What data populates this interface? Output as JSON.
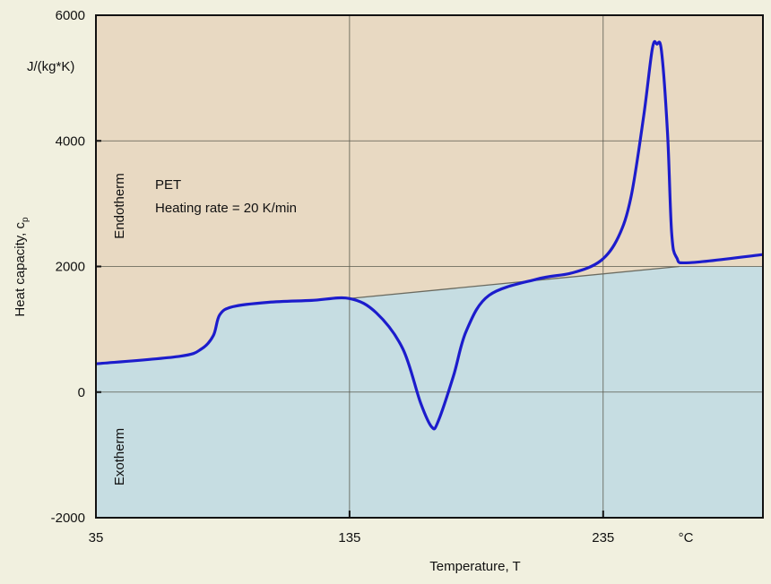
{
  "chart_data": {
    "type": "line",
    "title": "",
    "xlabel": "Temperature, T",
    "ylabel": "Heat capacity, c_p",
    "ylabel_main": "Heat capacity, c",
    "ylabel_sub": "p",
    "yunit": "J/(kg*K)",
    "xunit": "°C",
    "xlim": [
      35,
      298
    ],
    "ylim": [
      -2000,
      6000
    ],
    "xticks": [
      35,
      135,
      235
    ],
    "yticks": [
      -2000,
      0,
      2000,
      4000,
      6000
    ],
    "grid": true,
    "annotations": {
      "material": "PET",
      "rate": "Heating rate = 20 K/min",
      "endotherm": "Endotherm",
      "exotherm": "Exotherm"
    },
    "colors": {
      "curve": "#1c1ccc",
      "endotherm_fill": "#e8d9c2",
      "exotherm_fill": "#c6dde2",
      "endotherm_text": "#a0301c",
      "exotherm_text": "#2233cc",
      "baseline": "#6b6b60"
    },
    "series": [
      {
        "x": [
          35,
          68,
          76.7,
          81.3,
          83.8,
          89,
          103,
          120,
          135,
          145.6,
          156,
          163,
          167.5,
          170,
          176,
          181,
          190,
          209,
          223,
          234,
          241,
          246,
          251,
          254.4,
          256.2,
          258,
          260.4,
          262,
          264,
          269,
          298
        ],
        "y": [
          450,
          570,
          690,
          900,
          1230,
          1360,
          1430,
          1460,
          1490,
          1260,
          690,
          -170,
          -560,
          -460,
          260,
          970,
          1540,
          1800,
          1900,
          2090,
          2470,
          3110,
          4400,
          5470,
          5540,
          5430,
          4110,
          2540,
          2140,
          2060,
          2190
        ]
      }
    ],
    "baseline": {
      "x": [
        135,
        265,
        298
      ],
      "y": [
        1490,
        2000,
        2000
      ]
    }
  }
}
